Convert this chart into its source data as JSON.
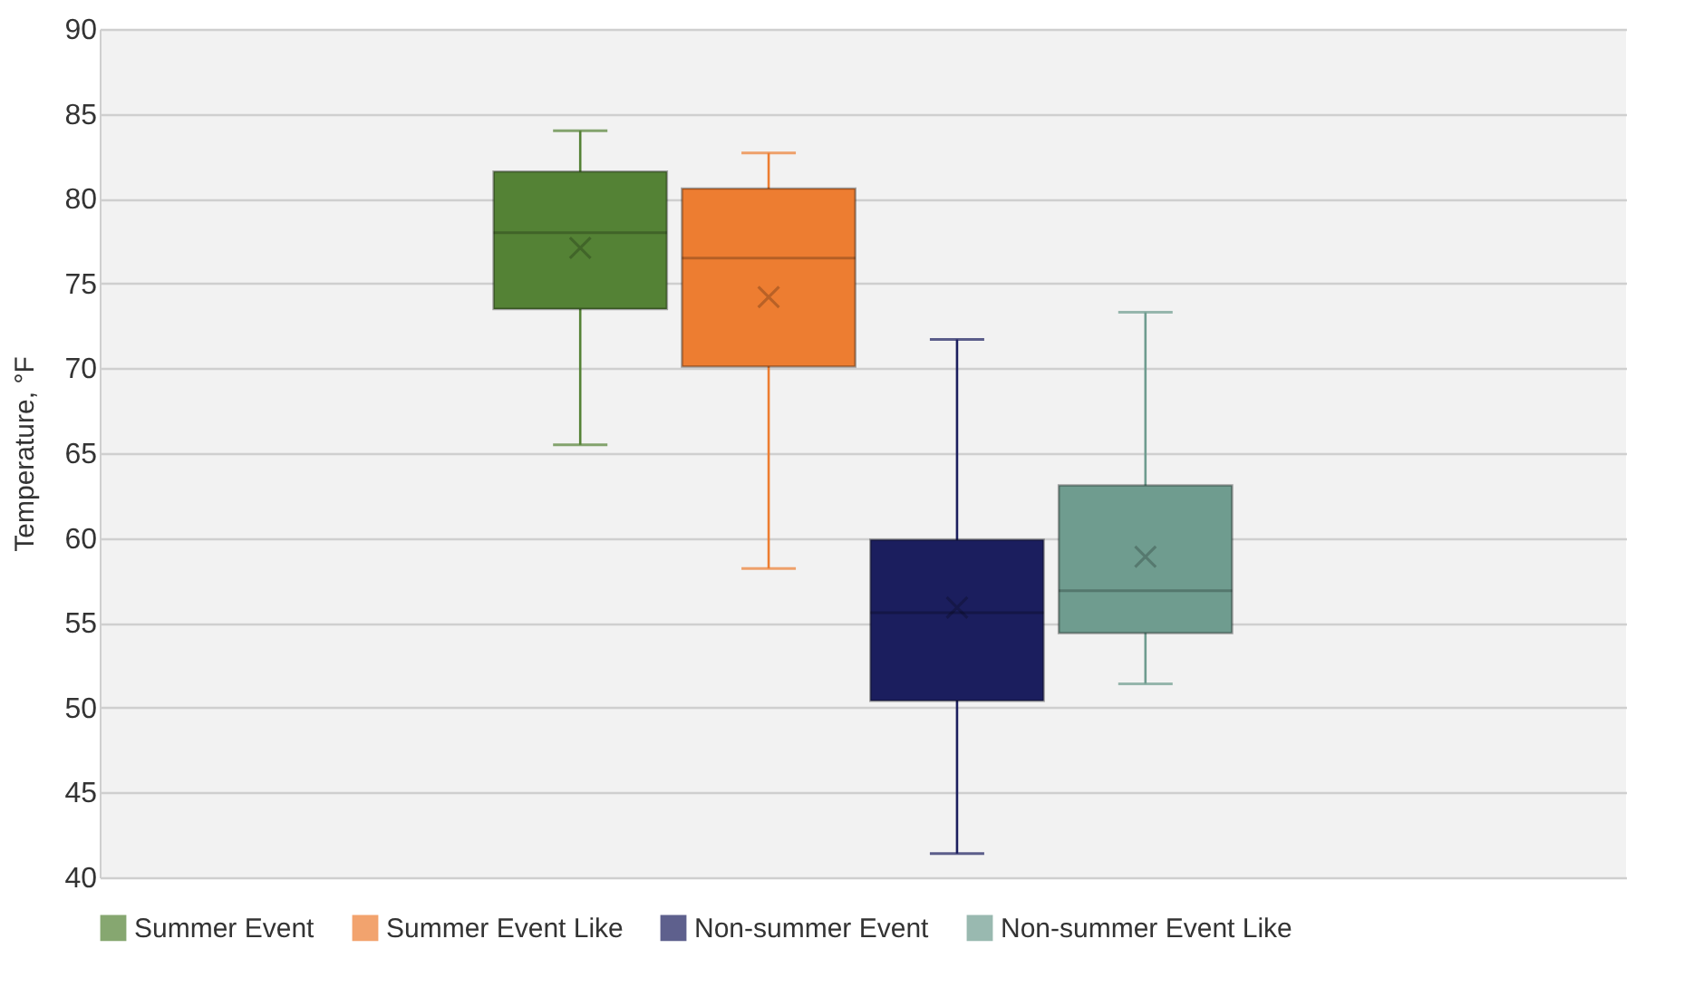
{
  "chart_data": {
    "type": "box",
    "ylabel": "Temperature, °F",
    "categories": [
      null
    ],
    "ylim": [
      40,
      90
    ],
    "yticks": [
      40,
      45,
      50,
      55,
      60,
      65,
      70,
      75,
      80,
      85,
      90
    ],
    "grid": "y",
    "legend": "bottom",
    "series": [
      {
        "name": "Summer Event",
        "color": "#548235",
        "boxes": [
          {
            "low": 65.5,
            "q1": 73.5,
            "median": 78.0,
            "q3": 81.6,
            "high": 84.0,
            "mean": 77.1
          }
        ]
      },
      {
        "name": "Summer Event Like",
        "color": "#ed7d31",
        "boxes": [
          {
            "low": 58.2,
            "q1": 70.1,
            "median": 76.5,
            "q3": 80.6,
            "high": 82.7,
            "mean": 74.2
          }
        ]
      },
      {
        "name": "Non-summer Event",
        "color": "#1b1e5e",
        "boxes": [
          {
            "low": 41.4,
            "q1": 50.4,
            "median": 55.6,
            "q3": 59.9,
            "high": 71.7,
            "mean": 55.9
          }
        ]
      },
      {
        "name": "Non-summer Event Like",
        "color": "#6f9c8f",
        "boxes": [
          {
            "low": 51.4,
            "q1": 54.4,
            "median": 56.9,
            "q3": 63.1,
            "high": 73.3,
            "mean": 58.9
          }
        ]
      }
    ]
  }
}
